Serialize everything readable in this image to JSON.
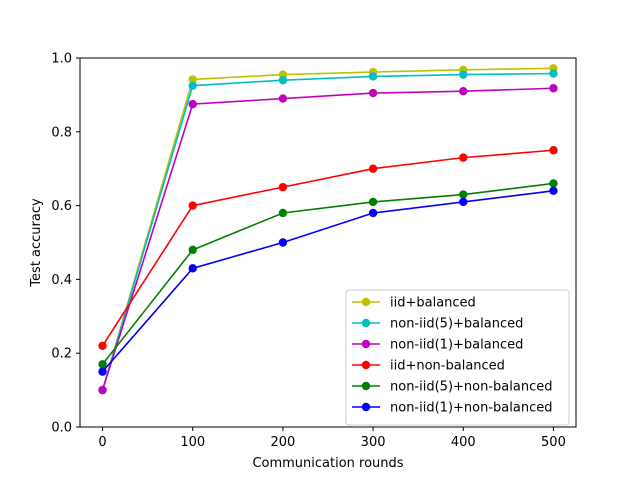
{
  "chart_data": {
    "type": "line",
    "xlabel": "Communication rounds",
    "ylabel": "Test accuracy",
    "x": [
      0,
      100,
      200,
      300,
      400,
      500
    ],
    "xlim": [
      -25,
      525
    ],
    "ylim": [
      0.0,
      1.0
    ],
    "xticks": [
      "0",
      "100",
      "200",
      "300",
      "400",
      "500"
    ],
    "yticks": [
      "0.0",
      "0.2",
      "0.4",
      "0.6",
      "0.8",
      "1.0"
    ],
    "grid": false,
    "legend_position": "lower-right",
    "series": [
      {
        "name": "iid+balanced",
        "color": "#bfbf00",
        "values": [
          0.1,
          0.942,
          0.955,
          0.962,
          0.968,
          0.972
        ]
      },
      {
        "name": "non-iid(5)+balanced",
        "color": "#00bfbf",
        "values": [
          0.1,
          0.925,
          0.94,
          0.95,
          0.955,
          0.958
        ]
      },
      {
        "name": "non-iid(1)+balanced",
        "color": "#bf00bf",
        "values": [
          0.1,
          0.875,
          0.89,
          0.905,
          0.91,
          0.918
        ]
      },
      {
        "name": "iid+non-balanced",
        "color": "#ff0000",
        "values": [
          0.22,
          0.6,
          0.65,
          0.7,
          0.73,
          0.75
        ]
      },
      {
        "name": "non-iid(5)+non-balanced",
        "color": "#008000",
        "values": [
          0.17,
          0.48,
          0.58,
          0.61,
          0.63,
          0.66
        ]
      },
      {
        "name": "non-iid(1)+non-balanced",
        "color": "#0000ff",
        "values": [
          0.15,
          0.43,
          0.5,
          0.58,
          0.61,
          0.64
        ]
      }
    ]
  }
}
